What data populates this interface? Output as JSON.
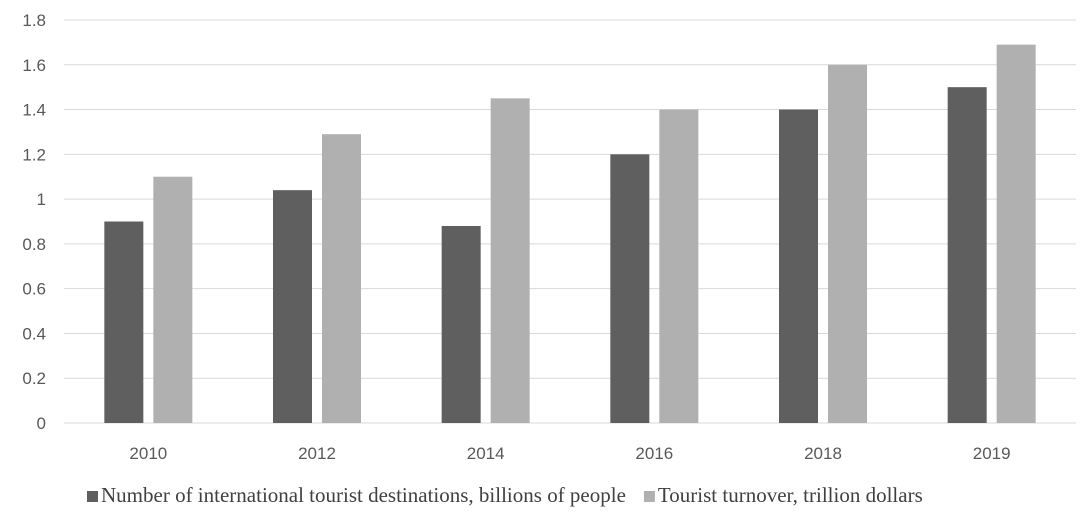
{
  "chart_data": {
    "type": "bar",
    "categories": [
      "2010",
      "2012",
      "2014",
      "2016",
      "2018",
      "2019"
    ],
    "series": [
      {
        "name": "Number of international tourist destinations, billions of people",
        "color": "#5f5f5f",
        "values": [
          0.9,
          1.04,
          0.88,
          1.2,
          1.4,
          1.5
        ]
      },
      {
        "name": "Tourist turnover, trillion dollars",
        "color": "#b0b0b0",
        "values": [
          1.1,
          1.29,
          1.45,
          1.4,
          1.6,
          1.69
        ]
      }
    ],
    "ylim": [
      0,
      1.8
    ],
    "yticks": [
      "0",
      "0.2",
      "0.4",
      "0.6",
      "0.8",
      "1",
      "1.2",
      "1.4",
      "1.6",
      "1.8"
    ],
    "grid": true,
    "legend_position": "bottom"
  }
}
